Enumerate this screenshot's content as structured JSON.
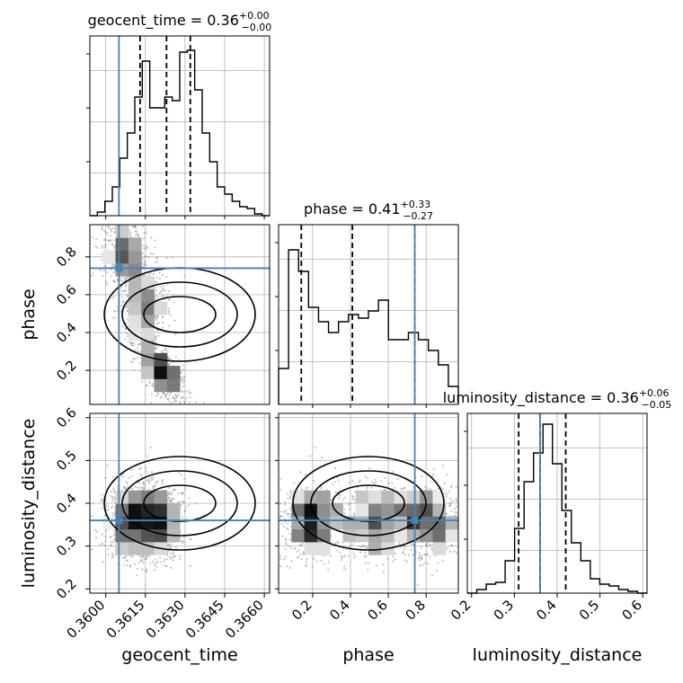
{
  "chart_data": {
    "type": "corner",
    "parameters": [
      "geocent_time",
      "phase",
      "luminosity_distance"
    ],
    "axis_labels": [
      "geocent_time",
      "phase",
      "luminosity_distance"
    ],
    "ranges": [
      [
        0.3594,
        0.3662
      ],
      [
        0.02,
        0.97
      ],
      [
        0.19,
        0.61
      ]
    ],
    "ticks": [
      [
        0.36,
        0.3615,
        0.363,
        0.3645,
        0.366
      ],
      [
        0.2,
        0.4,
        0.6,
        0.8
      ],
      [
        0.2,
        0.3,
        0.4,
        0.5,
        0.6
      ]
    ],
    "tick_labels": [
      [
        "0.3600",
        "0.3615",
        "0.3630",
        "0.3645",
        "0.3660"
      ],
      [
        "0.2",
        "0.4",
        "0.6",
        "0.8"
      ],
      [
        "0.2",
        "0.3",
        "0.4",
        "0.5",
        "0.6"
      ]
    ],
    "titles": [
      {
        "name": "geocent_time",
        "median": "0.36",
        "plus": "+0.00",
        "minus": "−0.00"
      },
      {
        "name": "phase",
        "median": "0.41",
        "plus": "+0.33",
        "minus": "−0.27"
      },
      {
        "name": "luminosity_distance",
        "median": "0.36",
        "plus": "+0.06",
        "minus": "−0.05"
      }
    ],
    "truths": [
      0.3605,
      0.74,
      0.36
    ],
    "quantiles": [
      [
        0.3613,
        0.3623,
        0.3632
      ],
      [
        0.14,
        0.41,
        0.74
      ],
      [
        0.31,
        0.36,
        0.42
      ]
    ],
    "histograms": [
      {
        "edges_from": 0.3594,
        "edges_to": 0.3662,
        "counts": [
          0,
          0.02,
          0.08,
          0.16,
          0.32,
          0.46,
          0.66,
          0.86,
          0.6,
          0.6,
          0.66,
          0.64,
          0.91,
          0.92,
          0.7,
          0.46,
          0.3,
          0.16,
          0.12,
          0.08,
          0.05,
          0.04,
          0.01,
          0
        ]
      },
      {
        "edges_from": 0.02,
        "edges_to": 0.97,
        "counts": [
          0.2,
          0.86,
          0.74,
          0.54,
          0.46,
          0.4,
          0.46,
          0.5,
          0.48,
          0.52,
          0.58,
          0.36,
          0.36,
          0.4,
          0.36,
          0.3,
          0.22,
          0.1
        ]
      },
      {
        "edges_from": 0.19,
        "edges_to": 0.61,
        "counts": [
          0,
          0.02,
          0.05,
          0.06,
          0.18,
          0.36,
          0.62,
          0.78,
          0.94,
          0.72,
          0.46,
          0.28,
          0.18,
          0.08,
          0.05,
          0.04,
          0.02,
          0.01,
          0
        ]
      }
    ],
    "grid": true,
    "legend": "none"
  }
}
